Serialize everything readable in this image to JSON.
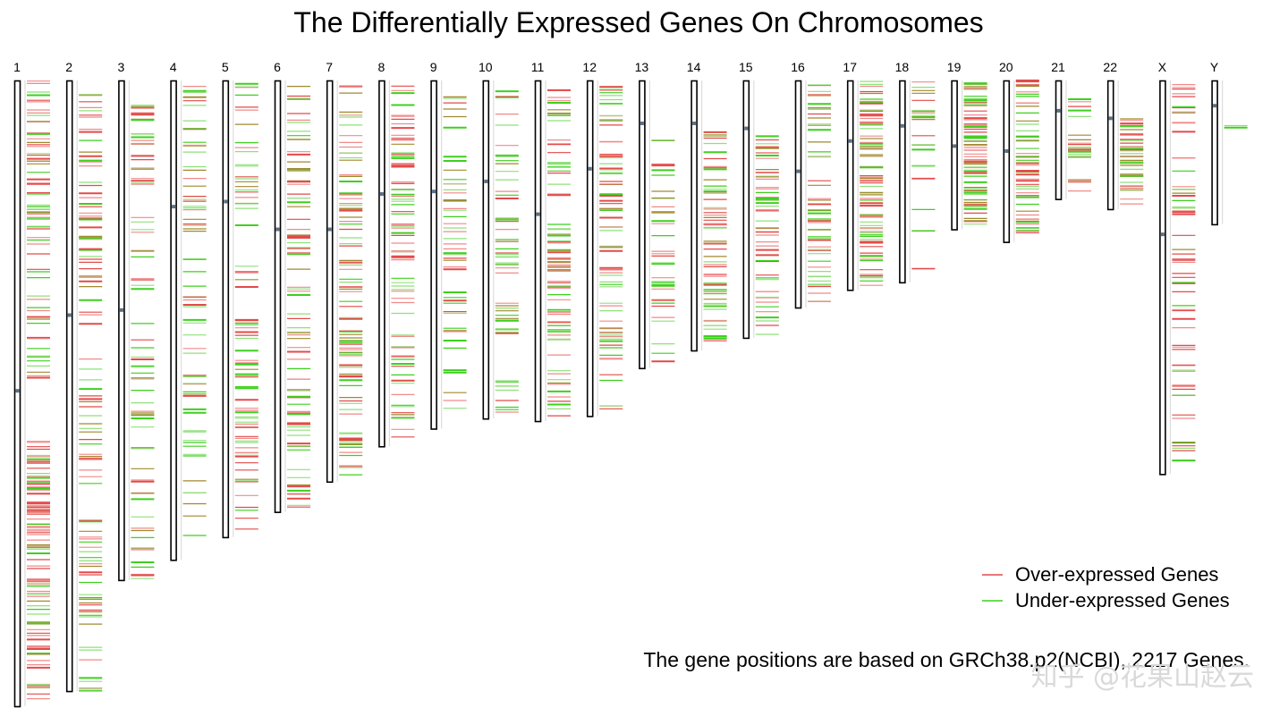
{
  "chart_data": {
    "type": "ideogram",
    "title": "The Differentially Expressed Genes On Chromosomes",
    "footnote": "The gene positions are based on GRCh38.p2(NCBI), 2217 Genes.",
    "watermark": "知乎 @花果山赵云",
    "legend": {
      "placement": "bottom-right",
      "entries": [
        {
          "label": "Over-expressed Genes",
          "color": "#e34a4a"
        },
        {
          "label": "Under-expressed Genes",
          "color": "#3fcf1f"
        }
      ]
    },
    "length_unit": "Mb",
    "chromosomes": [
      {
        "name": "1",
        "length": 248,
        "centromere": 123
      },
      {
        "name": "2",
        "length": 242,
        "centromere": 93
      },
      {
        "name": "3",
        "length": 198,
        "centromere": 91
      },
      {
        "name": "4",
        "length": 190,
        "centromere": 50
      },
      {
        "name": "5",
        "length": 181,
        "centromere": 48
      },
      {
        "name": "6",
        "length": 171,
        "centromere": 59
      },
      {
        "name": "7",
        "length": 159,
        "centromere": 59
      },
      {
        "name": "8",
        "length": 145,
        "centromere": 45
      },
      {
        "name": "9",
        "length": 138,
        "centromere": 44
      },
      {
        "name": "10",
        "length": 134,
        "centromere": 40
      },
      {
        "name": "11",
        "length": 135,
        "centromere": 53
      },
      {
        "name": "12",
        "length": 133,
        "centromere": 35
      },
      {
        "name": "13",
        "length": 114,
        "centromere": 17
      },
      {
        "name": "14",
        "length": 107,
        "centromere": 17
      },
      {
        "name": "15",
        "length": 102,
        "centromere": 19
      },
      {
        "name": "16",
        "length": 90,
        "centromere": 36
      },
      {
        "name": "17",
        "length": 83,
        "centromere": 24
      },
      {
        "name": "18",
        "length": 80,
        "centromere": 18
      },
      {
        "name": "19",
        "length": 59,
        "centromere": 26
      },
      {
        "name": "20",
        "length": 64,
        "centromere": 28
      },
      {
        "name": "21",
        "length": 47,
        "centromere": 12
      },
      {
        "name": "22",
        "length": 51,
        "centromere": 15
      },
      {
        "name": "X",
        "length": 156,
        "centromere": 61
      },
      {
        "name": "Y",
        "length": 57,
        "centromere": 10
      }
    ],
    "gene_clusters": [
      {
        "chr": "1",
        "start": 0,
        "end": 120,
        "over": 40,
        "under": 30
      },
      {
        "chr": "1",
        "start": 143,
        "end": 248,
        "over": 70,
        "under": 20
      },
      {
        "chr": "2",
        "start": 0,
        "end": 242,
        "over": 60,
        "under": 45
      },
      {
        "chr": "3",
        "start": 8,
        "end": 198,
        "over": 40,
        "under": 35
      },
      {
        "chr": "4",
        "start": 2,
        "end": 190,
        "over": 25,
        "under": 40
      },
      {
        "chr": "5",
        "start": 1,
        "end": 181,
        "over": 40,
        "under": 35
      },
      {
        "chr": "6",
        "start": 2,
        "end": 170,
        "over": 50,
        "under": 35
      },
      {
        "chr": "7",
        "start": 0,
        "end": 158,
        "over": 55,
        "under": 40
      },
      {
        "chr": "8",
        "start": 2,
        "end": 144,
        "over": 45,
        "under": 30
      },
      {
        "chr": "9",
        "start": 6,
        "end": 136,
        "over": 20,
        "under": 30
      },
      {
        "chr": "10",
        "start": 4,
        "end": 133,
        "over": 20,
        "under": 35
      },
      {
        "chr": "11",
        "start": 0,
        "end": 134,
        "over": 45,
        "under": 40
      },
      {
        "chr": "12",
        "start": 0,
        "end": 132,
        "over": 40,
        "under": 35
      },
      {
        "chr": "13",
        "start": 20,
        "end": 113,
        "over": 15,
        "under": 20
      },
      {
        "chr": "14",
        "start": 20,
        "end": 106,
        "over": 35,
        "under": 30
      },
      {
        "chr": "15",
        "start": 22,
        "end": 101,
        "over": 35,
        "under": 20
      },
      {
        "chr": "16",
        "start": 0,
        "end": 89,
        "over": 25,
        "under": 30
      },
      {
        "chr": "17",
        "start": 0,
        "end": 82,
        "over": 50,
        "under": 35
      },
      {
        "chr": "18",
        "start": 0,
        "end": 79,
        "over": 15,
        "under": 10
      },
      {
        "chr": "19",
        "start": 0,
        "end": 58,
        "over": 45,
        "under": 35
      },
      {
        "chr": "20",
        "start": 0,
        "end": 63,
        "over": 35,
        "under": 20
      },
      {
        "chr": "21",
        "start": 6,
        "end": 46,
        "over": 12,
        "under": 10
      },
      {
        "chr": "22",
        "start": 15,
        "end": 50,
        "over": 25,
        "under": 15
      },
      {
        "chr": "X",
        "start": 1,
        "end": 152,
        "over": 50,
        "under": 15
      },
      {
        "chr": "Y",
        "start": 13,
        "end": 19,
        "over": 0,
        "under": 2
      }
    ]
  }
}
